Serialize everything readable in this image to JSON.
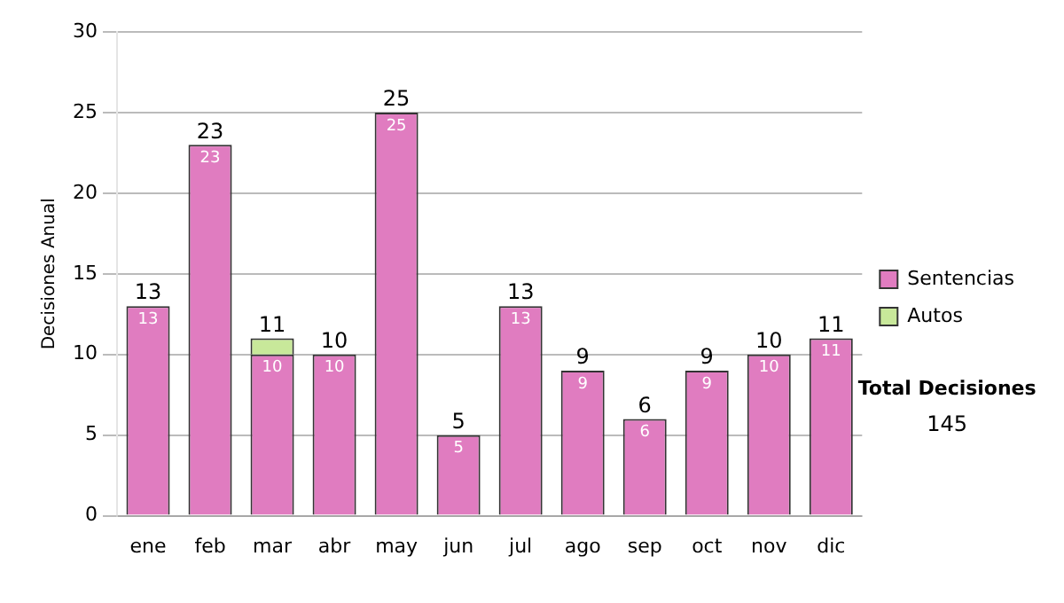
{
  "chart_data": {
    "type": "bar",
    "stacked": true,
    "ylabel": "Decisiones Anual",
    "categories": [
      "ene",
      "feb",
      "mar",
      "abr",
      "may",
      "jun",
      "jul",
      "ago",
      "sep",
      "oct",
      "nov",
      "dic"
    ],
    "series": [
      {
        "name": "Sentencias",
        "color": "#e07cc0",
        "values": [
          13,
          23,
          10,
          10,
          25,
          5,
          13,
          9,
          6,
          9,
          10,
          11
        ],
        "value_labels": [
          "13",
          "23",
          "10",
          "10",
          "25",
          "5",
          "13",
          "9",
          "6",
          "9",
          "10",
          "11"
        ]
      },
      {
        "name": "Autos",
        "color": "#c8e89a",
        "values": [
          0,
          0,
          1,
          0,
          0,
          0,
          0,
          0,
          0,
          0,
          0,
          0
        ],
        "value_labels": [
          null,
          null,
          null,
          null,
          null,
          null,
          null,
          null,
          null,
          null,
          null,
          null
        ]
      }
    ],
    "totals": [
      "13",
      "23",
      "11",
      "10",
      "25",
      "5",
      "13",
      "9",
      "6",
      "9",
      "10",
      "11"
    ],
    "ylim": [
      0,
      30
    ],
    "yticks": [
      0,
      5,
      10,
      15,
      20,
      25,
      30
    ],
    "grid": "y",
    "legend": "right",
    "annotations": [
      "Total Decisiones",
      "145"
    ]
  }
}
